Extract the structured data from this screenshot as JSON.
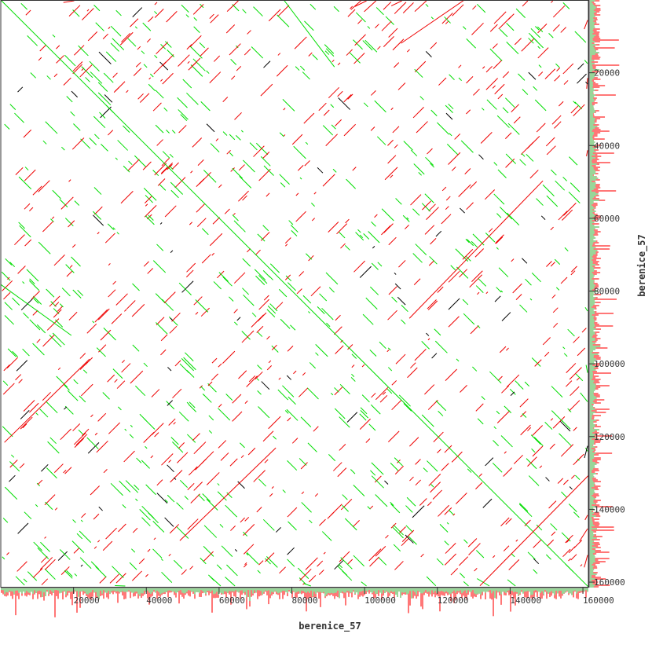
{
  "chart_data": {
    "type": "scatter",
    "subtype": "dot-plot self alignment",
    "xlabel": "berenice_57",
    "ylabel": "berenice_57",
    "xlim": [
      0,
      161500
    ],
    "ylim": [
      0,
      161500
    ],
    "y_direction": "down",
    "xticks": [
      "20000",
      "40000",
      "60000",
      "80000",
      "100000",
      "120000",
      "140000",
      "160000"
    ],
    "yticks": [
      "20000",
      "40000",
      "60000",
      "80000",
      "100000",
      "120000",
      "140000",
      "160000"
    ],
    "tick_values": [
      20000,
      40000,
      60000,
      80000,
      100000,
      120000,
      140000,
      160000
    ],
    "colors": {
      "forward": "#00dd00",
      "reverse": "#ee0000",
      "other": "#000000",
      "hist_red": "#ff7777",
      "hist_green": "#99d699",
      "frame": "#333333"
    },
    "segments": [
      {
        "strand": "forward",
        "x": [
          0,
          161500
        ],
        "y": [
          0,
          161300
        ]
      },
      {
        "strand": "forward",
        "x": [
          0,
          19400
        ],
        "y": [
          78200,
          92200
        ]
      },
      {
        "strand": "forward",
        "x": [
          77800,
          91700
        ],
        "y": [
          0,
          18400
        ]
      },
      {
        "strand": "reverse",
        "x": [
          1000,
          24400
        ],
        "y": [
          121600,
          98700
        ]
      },
      {
        "strand": "reverse",
        "x": [
          49200,
          75600
        ],
        "y": [
          148600,
          123100
        ]
      },
      {
        "strand": "reverse",
        "x": [
          112300,
          149000
        ],
        "y": [
          87500,
          49700
        ]
      },
      {
        "strand": "reverse",
        "x": [
          110000,
          127400
        ],
        "y": [
          11900,
          0
        ]
      },
      {
        "strand": "reverse",
        "x": [
          131700,
          161500
        ],
        "y": [
          161000,
          130700
        ]
      }
    ]
  }
}
